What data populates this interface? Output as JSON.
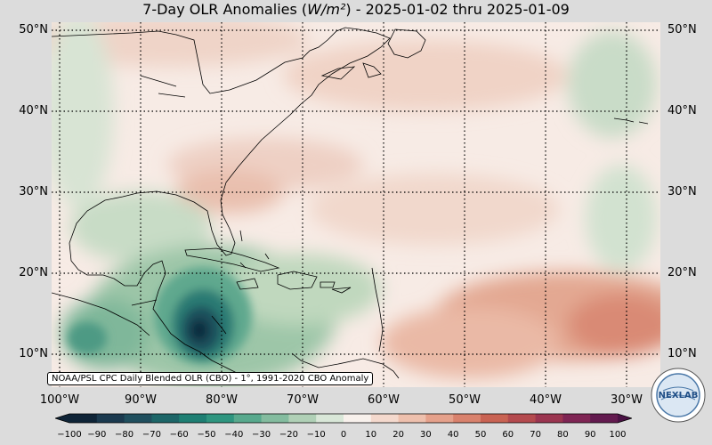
{
  "title": {
    "prefix": "7-Day OLR Anomalies (",
    "unit": "W/m²",
    "suffix": ") - 2025-01-02 thru 2025-01-09"
  },
  "lat_labels": [
    "50°N",
    "40°N",
    "30°N",
    "20°N",
    "10°N"
  ],
  "lon_labels": [
    "100°W",
    "90°W",
    "80°W",
    "70°W",
    "60°W",
    "50°W",
    "40°W",
    "30°W"
  ],
  "credit": "NOAA/PSL CPC Daily Blended OLR (CBO) - 1°, 1991-2020 CBO Anomaly",
  "colorbar": {
    "ticks": [
      "−100",
      "−90",
      "−80",
      "−70",
      "−60",
      "−50",
      "−40",
      "−30",
      "−20",
      "−10",
      "0",
      "10",
      "20",
      "30",
      "40",
      "50",
      "60",
      "70",
      "80",
      "90",
      "100"
    ],
    "colors": [
      "#0f2437",
      "#1b3a4f",
      "#204f5e",
      "#1d6668",
      "#1e7f73",
      "#2e957f",
      "#58a98d",
      "#84bc9f",
      "#b0d0b6",
      "#d9e7d8",
      "#f8f1ec",
      "#f4d9cd",
      "#eec0ad",
      "#e5a18b",
      "#d9826d",
      "#c96353",
      "#b44a4e",
      "#9b3550",
      "#7f2554",
      "#631a4f",
      "#4a1244"
    ]
  },
  "logo_text": "NEXLAB"
}
